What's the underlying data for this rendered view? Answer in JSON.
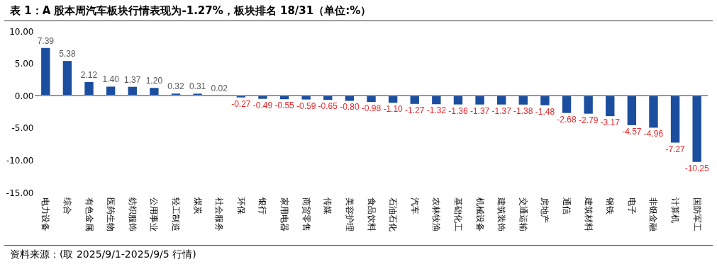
{
  "chart_data": {
    "type": "bar",
    "title": "表 1：A 股本周汽车板块行情表现为-1.27%，板块排名 18/31（单位:%）",
    "categories": [
      "电力设备",
      "综合",
      "有色金属",
      "医药生物",
      "纺织服饰",
      "公用事业",
      "轻工制造",
      "煤炭",
      "社会服务",
      "环保",
      "银行",
      "家用电器",
      "商贸零售",
      "传媒",
      "美容护理",
      "食品饮料",
      "石油石化",
      "汽车",
      "农林牧渔",
      "基础化工",
      "机械设备",
      "建筑装饰",
      "交通运输",
      "房地产",
      "通信",
      "建筑材料",
      "钢铁",
      "电子",
      "非银金融",
      "计算机",
      "国防军工"
    ],
    "values": [
      7.39,
      5.38,
      2.12,
      1.4,
      1.37,
      1.2,
      0.32,
      0.31,
      0.02,
      -0.27,
      -0.49,
      -0.55,
      -0.59,
      -0.65,
      -0.8,
      -0.98,
      -1.1,
      -1.27,
      -1.32,
      -1.36,
      -1.37,
      -1.37,
      -1.38,
      -1.48,
      -2.68,
      -2.79,
      -3.17,
      -4.57,
      -4.96,
      -7.27,
      -10.25
    ],
    "color": "#1c4ea0",
    "ylim": [
      -15,
      10
    ],
    "yticks": [
      {
        "value": 10,
        "label": "10.00"
      },
      {
        "value": 5,
        "label": "5.00"
      },
      {
        "value": 0,
        "label": "0.00"
      },
      {
        "value": -5,
        "label": "-5.00"
      },
      {
        "value": -10,
        "label": "-10.00"
      },
      {
        "value": -15,
        "label": "-15.00"
      }
    ],
    "value_labels": [
      "7.39",
      "5.38",
      "2.12",
      "1.40",
      "1.37",
      "1.20",
      "0.32",
      "0.31",
      "0.02",
      "-0.27",
      "-0.49",
      "-0.55",
      "-0.59",
      "-0.65",
      "-0.80",
      "-0.98",
      "-1.10",
      "-1.27",
      "-1.32",
      "-1.36",
      "-1.37",
      "-1.37",
      "-1.38",
      "-1.48",
      "-2.68",
      "-2.79",
      "-3.17",
      "-4.57",
      "-4.96",
      "-7.27",
      "-10.25"
    ],
    "annotations": [
      "资料来源：(取 2025/9/1-2025/9/5 行情)"
    ]
  }
}
